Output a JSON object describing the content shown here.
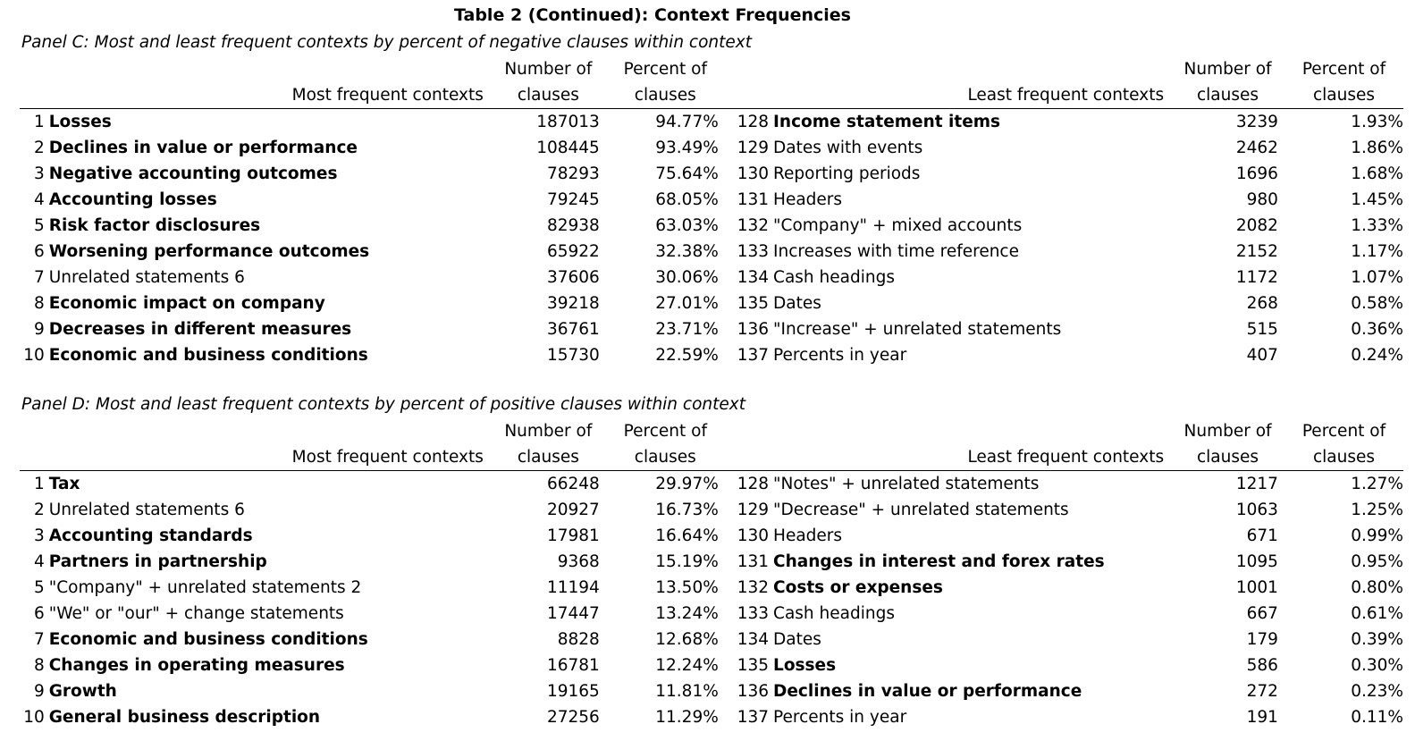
{
  "title": "Table 2 (Continued): Context Frequencies",
  "panels": [
    {
      "id": "C",
      "title": "Panel C: Most and least frequent contexts by percent of negative clauses within context",
      "headers": {
        "num_top": "Number of",
        "num_bottom": "clauses",
        "pct_top": "Percent of",
        "pct_bottom": "clauses",
        "most_label": "Most frequent contexts",
        "least_label": "Least frequent contexts"
      },
      "rows": [
        {
          "left_rank": "1",
          "left_context": "Losses",
          "left_bold": true,
          "left_number": "187013",
          "left_percent": "94.77%",
          "right_rank": "128",
          "right_context": "Income statement items",
          "right_bold": true,
          "right_number": "3239",
          "right_percent": "1.93%"
        },
        {
          "left_rank": "2",
          "left_context": "Declines in value or performance",
          "left_bold": true,
          "left_number": "108445",
          "left_percent": "93.49%",
          "right_rank": "129",
          "right_context": "Dates with events",
          "right_bold": false,
          "right_number": "2462",
          "right_percent": "1.86%"
        },
        {
          "left_rank": "3",
          "left_context": "Negative accounting outcomes",
          "left_bold": true,
          "left_number": "78293",
          "left_percent": "75.64%",
          "right_rank": "130",
          "right_context": "Reporting periods",
          "right_bold": false,
          "right_number": "1696",
          "right_percent": "1.68%"
        },
        {
          "left_rank": "4",
          "left_context": "Accounting losses",
          "left_bold": true,
          "left_number": "79245",
          "left_percent": "68.05%",
          "right_rank": "131",
          "right_context": "Headers",
          "right_bold": false,
          "right_number": "980",
          "right_percent": "1.45%"
        },
        {
          "left_rank": "5",
          "left_context": "Risk factor disclosures",
          "left_bold": true,
          "left_number": "82938",
          "left_percent": "63.03%",
          "right_rank": "132",
          "right_context": "\"Company\" + mixed accounts",
          "right_bold": false,
          "right_number": "2082",
          "right_percent": "1.33%"
        },
        {
          "left_rank": "6",
          "left_context": "Worsening performance outcomes",
          "left_bold": true,
          "left_number": "65922",
          "left_percent": "32.38%",
          "right_rank": "133",
          "right_context": "Increases with time reference",
          "right_bold": false,
          "right_number": "2152",
          "right_percent": "1.17%"
        },
        {
          "left_rank": "7",
          "left_context": "Unrelated statements 6",
          "left_bold": false,
          "left_number": "37606",
          "left_percent": "30.06%",
          "right_rank": "134",
          "right_context": "Cash headings",
          "right_bold": false,
          "right_number": "1172",
          "right_percent": "1.07%"
        },
        {
          "left_rank": "8",
          "left_context": "Economic impact on company",
          "left_bold": true,
          "left_number": "39218",
          "left_percent": "27.01%",
          "right_rank": "135",
          "right_context": "Dates",
          "right_bold": false,
          "right_number": "268",
          "right_percent": "0.58%"
        },
        {
          "left_rank": "9",
          "left_context": "Decreases in different measures",
          "left_bold": true,
          "left_number": "36761",
          "left_percent": "23.71%",
          "right_rank": "136",
          "right_context": "\"Increase\" + unrelated statements",
          "right_bold": false,
          "right_number": "515",
          "right_percent": "0.36%"
        },
        {
          "left_rank": "10",
          "left_context": "Economic and business conditions",
          "left_bold": true,
          "left_number": "15730",
          "left_percent": "22.59%",
          "right_rank": "137",
          "right_context": "Percents in year",
          "right_bold": false,
          "right_number": "407",
          "right_percent": "0.24%"
        }
      ]
    },
    {
      "id": "D",
      "title": "Panel D: Most and least frequent contexts by percent of positive clauses within context",
      "headers": {
        "num_top": "Number of",
        "num_bottom": "clauses",
        "pct_top": "Percent of",
        "pct_bottom": "clauses",
        "most_label": "Most frequent contexts",
        "least_label": "Least frequent contexts"
      },
      "rows": [
        {
          "left_rank": "1",
          "left_context": "Tax",
          "left_bold": true,
          "left_number": "66248",
          "left_percent": "29.97%",
          "right_rank": "128",
          "right_context": "\"Notes\" + unrelated statements",
          "right_bold": false,
          "right_number": "1217",
          "right_percent": "1.27%"
        },
        {
          "left_rank": "2",
          "left_context": "Unrelated statements 6",
          "left_bold": false,
          "left_number": "20927",
          "left_percent": "16.73%",
          "right_rank": "129",
          "right_context": "\"Decrease\" + unrelated statements",
          "right_bold": false,
          "right_number": "1063",
          "right_percent": "1.25%"
        },
        {
          "left_rank": "3",
          "left_context": "Accounting standards",
          "left_bold": true,
          "left_number": "17981",
          "left_percent": "16.64%",
          "right_rank": "130",
          "right_context": "Headers",
          "right_bold": false,
          "right_number": "671",
          "right_percent": "0.99%"
        },
        {
          "left_rank": "4",
          "left_context": "Partners in partnership",
          "left_bold": true,
          "left_number": "9368",
          "left_percent": "15.19%",
          "right_rank": "131",
          "right_context": "Changes in interest and forex rates",
          "right_bold": true,
          "right_number": "1095",
          "right_percent": "0.95%"
        },
        {
          "left_rank": "5",
          "left_context": "\"Company\" + unrelated statements 2",
          "left_bold": false,
          "left_number": "11194",
          "left_percent": "13.50%",
          "right_rank": "132",
          "right_context": "Costs or expenses",
          "right_bold": true,
          "right_number": "1001",
          "right_percent": "0.80%"
        },
        {
          "left_rank": "6",
          "left_context": "\"We\" or \"our\" + change statements",
          "left_bold": false,
          "left_number": "17447",
          "left_percent": "13.24%",
          "right_rank": "133",
          "right_context": "Cash headings",
          "right_bold": false,
          "right_number": "667",
          "right_percent": "0.61%"
        },
        {
          "left_rank": "7",
          "left_context": "Economic and business conditions",
          "left_bold": true,
          "left_number": "8828",
          "left_percent": "12.68%",
          "right_rank": "134",
          "right_context": "Dates",
          "right_bold": false,
          "right_number": "179",
          "right_percent": "0.39%"
        },
        {
          "left_rank": "8",
          "left_context": "Changes in operating measures",
          "left_bold": true,
          "left_number": "16781",
          "left_percent": "12.24%",
          "right_rank": "135",
          "right_context": "Losses",
          "right_bold": true,
          "right_number": "586",
          "right_percent": "0.30%"
        },
        {
          "left_rank": "9",
          "left_context": "Growth",
          "left_bold": true,
          "left_number": "19165",
          "left_percent": "11.81%",
          "right_rank": "136",
          "right_context": "Declines in value or performance",
          "right_bold": true,
          "right_number": "272",
          "right_percent": "0.23%"
        },
        {
          "left_rank": "10",
          "left_context": "General business description",
          "left_bold": true,
          "left_number": "27256",
          "left_percent": "11.29%",
          "right_rank": "137",
          "right_context": "Percents in year",
          "right_bold": false,
          "right_number": "191",
          "right_percent": "0.11%"
        }
      ]
    }
  ]
}
